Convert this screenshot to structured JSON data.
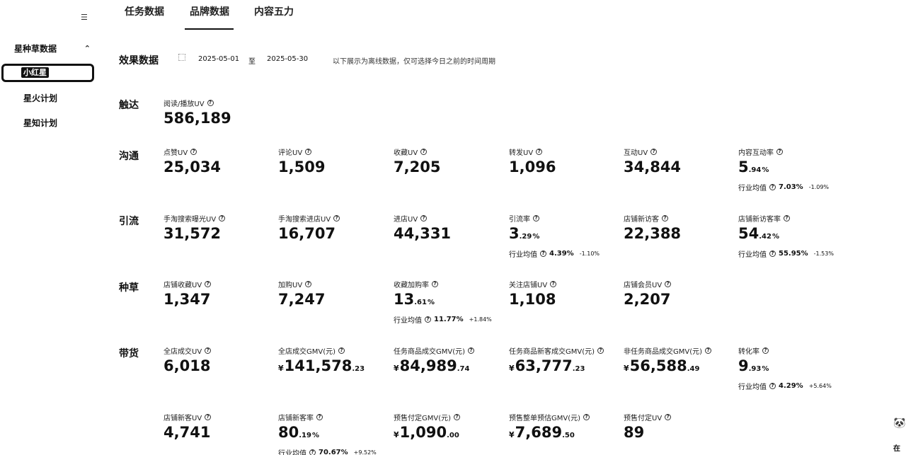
{
  "sidebar": {
    "top_icon": "☰",
    "group_label": "星种草数据",
    "items": [
      {
        "label": "小红星",
        "active": true
      },
      {
        "label": "星火计划",
        "active": false
      },
      {
        "label": "星知计划",
        "active": false
      }
    ]
  },
  "tabs": [
    {
      "label": "任务数据",
      "active": false
    },
    {
      "label": "品牌数据",
      "active": true
    },
    {
      "label": "内容五力",
      "active": false
    }
  ],
  "filter": {
    "title": "效果数据",
    "start_date": "2025-05-01",
    "separator": "至",
    "end_date": "2025-05-30",
    "hint": "以下展示为离线数据，仅可选择今日之前的时间周期"
  },
  "sections": [
    {
      "label": "触达",
      "metrics": [
        {
          "label": "阅读/播放UV",
          "int": "586,189"
        }
      ]
    },
    {
      "label": "沟通",
      "metrics": [
        {
          "label": "点赞UV",
          "int": "25,034"
        },
        {
          "label": "评论UV",
          "int": "1,509"
        },
        {
          "label": "收藏UV",
          "int": "7,205"
        },
        {
          "label": "转发UV",
          "int": "1,096"
        },
        {
          "label": "互动UV",
          "int": "34,844"
        },
        {
          "label": "内容互动率",
          "int": "5",
          "dec": ".94",
          "pct": "%",
          "avg_label": "行业均值",
          "avg_value": "7.03%",
          "avg_diff": "-1.09%"
        }
      ]
    },
    {
      "label": "引流",
      "metrics": [
        {
          "label": "手淘搜索曝光UV",
          "int": "31,572"
        },
        {
          "label": "手淘搜索进店UV",
          "int": "16,707"
        },
        {
          "label": "进店UV",
          "int": "44,331"
        },
        {
          "label": "引流率",
          "int": "3",
          "dec": ".29",
          "pct": "%",
          "avg_label": "行业均值",
          "avg_value": "4.39%",
          "avg_diff": "-1.10%"
        },
        {
          "label": "店铺新访客",
          "int": "22,388"
        },
        {
          "label": "店铺新访客率",
          "int": "54",
          "dec": ".42",
          "pct": "%",
          "avg_label": "行业均值",
          "avg_value": "55.95%",
          "avg_diff": "-1.53%"
        }
      ]
    },
    {
      "label": "种草",
      "metrics": [
        {
          "label": "店铺收藏UV",
          "int": "1,347"
        },
        {
          "label": "加购UV",
          "int": "7,247"
        },
        {
          "label": "收藏加购率",
          "int": "13",
          "dec": ".61",
          "pct": "%",
          "avg_label": "行业均值",
          "avg_value": "11.77%",
          "avg_diff": "+1.84%"
        },
        {
          "label": "关注店铺UV",
          "int": "1,108"
        },
        {
          "label": "店铺会员UV",
          "int": "2,207"
        }
      ]
    },
    {
      "label": "带货",
      "metrics": [
        {
          "label": "全店成交UV",
          "int": "6,018"
        },
        {
          "label": "全店成交GMV(元)",
          "cur": "¥",
          "int": "141,578",
          "dec": ".23"
        },
        {
          "label": "任务商品成交GMV(元)",
          "cur": "¥",
          "int": "84,989",
          "dec": ".74"
        },
        {
          "label": "任务商品新客成交GMV(元)",
          "cur": "¥",
          "int": "63,777",
          "dec": ".23"
        },
        {
          "label": "非任务商品成交GMV(元)",
          "cur": "¥",
          "int": "56,588",
          "dec": ".49"
        },
        {
          "label": "转化率",
          "int": "9",
          "dec": ".93",
          "pct": "%",
          "avg_label": "行业均值",
          "avg_value": "4.29%",
          "avg_diff": "+5.64%"
        }
      ]
    },
    {
      "label": "",
      "metrics": [
        {
          "label": "店铺新客UV",
          "int": "4,741"
        },
        {
          "label": "店铺新客率",
          "int": "80",
          "dec": ".19",
          "pct": "%",
          "avg_label": "行业均值",
          "avg_value": "70.67%",
          "avg_diff": "+9.52%"
        },
        {
          "label": "预售付定GMV(元)",
          "cur": "¥",
          "int": "1,090",
          "dec": ".00"
        },
        {
          "label": "预售整单预估GMV(元)",
          "cur": "¥",
          "int": "7,689",
          "dec": ".50"
        },
        {
          "label": "预售付定UV",
          "int": "89"
        }
      ]
    }
  ],
  "corner": {
    "text": "在线"
  }
}
